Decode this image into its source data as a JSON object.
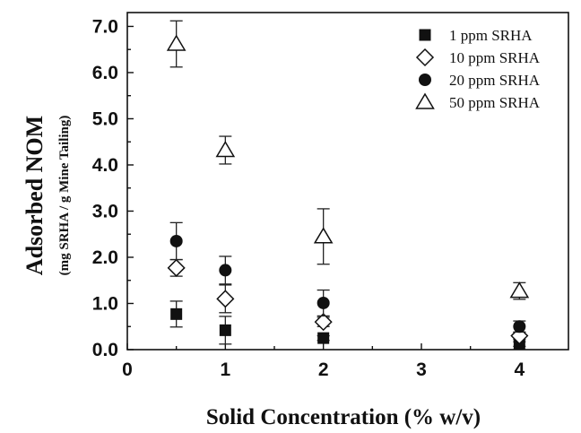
{
  "chart_data": {
    "type": "scatter",
    "xlabel": "Solid Concentration (% w/v)",
    "ylabel": "Adsorbed NOM",
    "ylabel_sub": "(mg SRHA / g Mine Tailing)",
    "xlim": [
      0,
      4.5
    ],
    "ylim": [
      0,
      7.3
    ],
    "x_ticks": [
      "0",
      "1",
      "2",
      "3",
      "4"
    ],
    "y_ticks": [
      "0.0",
      "1.0",
      "2.0",
      "3.0",
      "4.0",
      "5.0",
      "6.0",
      "7.0"
    ],
    "legend_position": "top-right",
    "series": [
      {
        "name": "1 ppm SRHA",
        "marker": "square-filled",
        "x": [
          0.5,
          1,
          2,
          4
        ],
        "y": [
          0.77,
          0.42,
          0.25,
          0.12
        ],
        "err": [
          0.28,
          0.3,
          0.05,
          0.05
        ]
      },
      {
        "name": "10 ppm SRHA",
        "marker": "diamond-open",
        "x": [
          0.5,
          1,
          2,
          4
        ],
        "y": [
          1.77,
          1.1,
          0.6,
          0.3
        ],
        "err": [
          0.18,
          0.3,
          0.1,
          0.08
        ]
      },
      {
        "name": "20 ppm SRHA",
        "marker": "circle-filled",
        "x": [
          0.5,
          1,
          2,
          4
        ],
        "y": [
          2.35,
          1.72,
          1.01,
          0.5
        ],
        "err": [
          0.4,
          0.3,
          0.28,
          0.12
        ]
      },
      {
        "name": "50 ppm SRHA",
        "marker": "triangle-open",
        "x": [
          0.5,
          1,
          2,
          4
        ],
        "y": [
          6.62,
          4.32,
          2.45,
          1.27
        ],
        "err": [
          0.5,
          0.3,
          0.6,
          0.18
        ]
      }
    ]
  }
}
